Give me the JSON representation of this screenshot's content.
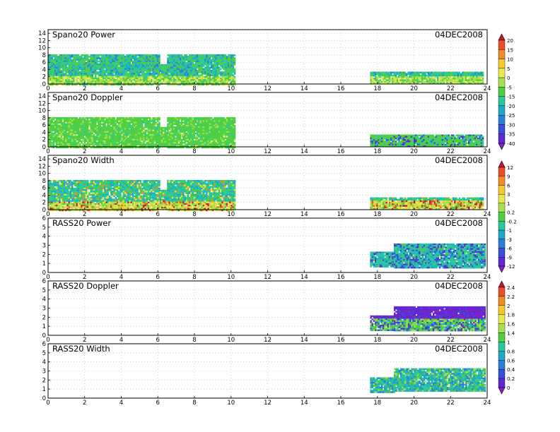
{
  "chart_data": [
    {
      "type": "heatmap",
      "title": "Spano20 Power",
      "date": "04DEC2008",
      "xlim": [
        0,
        24
      ],
      "ylim": [
        0,
        15
      ],
      "xticks": [
        0,
        2,
        4,
        6,
        8,
        10,
        12,
        14,
        16,
        18,
        20,
        22,
        24
      ],
      "yticks": [
        0,
        2,
        4,
        6,
        8,
        10,
        12,
        14
      ],
      "grid": true,
      "colorbar_key": "power",
      "segments": [
        {
          "x": [
            0,
            6.1
          ],
          "y": [
            0,
            8.2
          ]
        },
        {
          "x": [
            6.1,
            6.5
          ],
          "y": [
            0,
            5.5
          ]
        },
        {
          "x": [
            6.5,
            10.2
          ],
          "y": [
            0,
            8.2
          ]
        },
        {
          "x": [
            17.6,
            23.8
          ],
          "y": [
            0.3,
            3.4
          ]
        }
      ]
    },
    {
      "type": "heatmap",
      "title": "Spano20 Doppler",
      "date": "04DEC2008",
      "xlim": [
        0,
        24
      ],
      "ylim": [
        0,
        15
      ],
      "xticks": [
        0,
        2,
        4,
        6,
        8,
        10,
        12,
        14,
        16,
        18,
        20,
        22,
        24
      ],
      "yticks": [
        0,
        2,
        4,
        6,
        8,
        10,
        12,
        14
      ],
      "grid": true,
      "colorbar_key": "power",
      "segments": [
        {
          "x": [
            0,
            6.1
          ],
          "y": [
            0,
            8.2
          ]
        },
        {
          "x": [
            6.1,
            6.5
          ],
          "y": [
            0,
            5.5
          ]
        },
        {
          "x": [
            6.5,
            10.2
          ],
          "y": [
            0,
            8.2
          ]
        },
        {
          "x": [
            17.6,
            23.8
          ],
          "y": [
            0.3,
            3.4
          ]
        }
      ]
    },
    {
      "type": "heatmap",
      "title": "Spano20 Width",
      "date": "04DEC2008",
      "xlim": [
        0,
        24
      ],
      "ylim": [
        0,
        15
      ],
      "xticks": [
        0,
        2,
        4,
        6,
        8,
        10,
        12,
        14,
        16,
        18,
        20,
        22,
        24
      ],
      "yticks": [
        0,
        2,
        4,
        6,
        8,
        10,
        12,
        14
      ],
      "grid": true,
      "colorbar_key": "width",
      "segments": [
        {
          "x": [
            0,
            6.1
          ],
          "y": [
            0,
            8.2
          ]
        },
        {
          "x": [
            6.1,
            6.5
          ],
          "y": [
            0,
            5.5
          ]
        },
        {
          "x": [
            6.5,
            10.2
          ],
          "y": [
            0,
            8.2
          ]
        },
        {
          "x": [
            17.6,
            23.8
          ],
          "y": [
            0.3,
            3.4
          ]
        }
      ]
    },
    {
      "type": "heatmap",
      "title": "RASS20 Power",
      "date": "04DEC2008",
      "xlim": [
        0,
        24
      ],
      "ylim": [
        0,
        6
      ],
      "xticks": [
        0,
        2,
        4,
        6,
        8,
        10,
        12,
        14,
        16,
        18,
        20,
        22,
        24
      ],
      "yticks": [
        0,
        1,
        2,
        3,
        4,
        5,
        6
      ],
      "grid": true,
      "colorbar_key": "width",
      "segments": [
        {
          "x": [
            17.6,
            18.9
          ],
          "y": [
            0.7,
            2.3
          ]
        },
        {
          "x": [
            18.9,
            23.9
          ],
          "y": [
            0.6,
            3.2
          ]
        }
      ]
    },
    {
      "type": "heatmap",
      "title": "RASS20 Doppler",
      "date": "04DEC2008",
      "xlim": [
        0,
        24
      ],
      "ylim": [
        0,
        6
      ],
      "xticks": [
        0,
        2,
        4,
        6,
        8,
        10,
        12,
        14,
        16,
        18,
        20,
        22,
        24
      ],
      "yticks": [
        0,
        1,
        2,
        3,
        4,
        5,
        6
      ],
      "grid": true,
      "colorbar_key": "doppler",
      "segments": [
        {
          "x": [
            17.6,
            18.9
          ],
          "y": [
            0.6,
            2.2
          ]
        },
        {
          "x": [
            18.9,
            23.9
          ],
          "y": [
            0.6,
            3.2
          ]
        }
      ]
    },
    {
      "type": "heatmap",
      "title": "RASS20 Width",
      "date": "04DEC2008",
      "xlim": [
        0,
        24
      ],
      "ylim": [
        0,
        6
      ],
      "xticks": [
        0,
        2,
        4,
        6,
        8,
        10,
        12,
        14,
        16,
        18,
        20,
        22,
        24
      ],
      "yticks": [
        0,
        1,
        2,
        3,
        4,
        5,
        6
      ],
      "grid": true,
      "colorbar_key": "doppler",
      "segments": [
        {
          "x": [
            17.6,
            18.9
          ],
          "y": [
            0.7,
            2.3
          ]
        },
        {
          "x": [
            18.9,
            23.9
          ],
          "y": [
            0.8,
            3.3
          ]
        }
      ]
    }
  ],
  "colorbars": {
    "power": {
      "labels": [
        "20",
        "15",
        "10",
        "5",
        "0",
        "-5",
        "-15",
        "-20",
        "-25",
        "-30",
        "-35",
        "-40"
      ],
      "colors": [
        "#c8143c",
        "#e8502c",
        "#f08c28",
        "#f8c830",
        "#e8e850",
        "#a8e050",
        "#50d040",
        "#28c8a0",
        "#20a8c8",
        "#2880d8",
        "#3850d8",
        "#6028d0",
        "#8c1cc8"
      ]
    },
    "width": {
      "labels": [
        "12",
        "9",
        "6",
        "3",
        "1",
        "0.2",
        "-0.2",
        "-1",
        "-3",
        "-6",
        "-9",
        "-12"
      ],
      "colors": [
        "#c8143c",
        "#e8502c",
        "#f08c28",
        "#f8c830",
        "#e8e850",
        "#a8e050",
        "#50d040",
        "#28c8a0",
        "#20a8c8",
        "#2880d8",
        "#3850d8",
        "#6028d0",
        "#8c1cc8"
      ]
    },
    "doppler": {
      "labels": [
        "2.4",
        "2.2",
        "2",
        "1.8",
        "1.6",
        "1.4",
        "1",
        "0.8",
        "0.6",
        "0.4",
        "0.2",
        "0"
      ],
      "colors": [
        "#c8143c",
        "#e8502c",
        "#f08c28",
        "#f8c830",
        "#e8e850",
        "#a8e050",
        "#50d040",
        "#28c8a0",
        "#20a8c8",
        "#2880d8",
        "#3850d8",
        "#6028d0",
        "#8c1cc8"
      ]
    }
  }
}
